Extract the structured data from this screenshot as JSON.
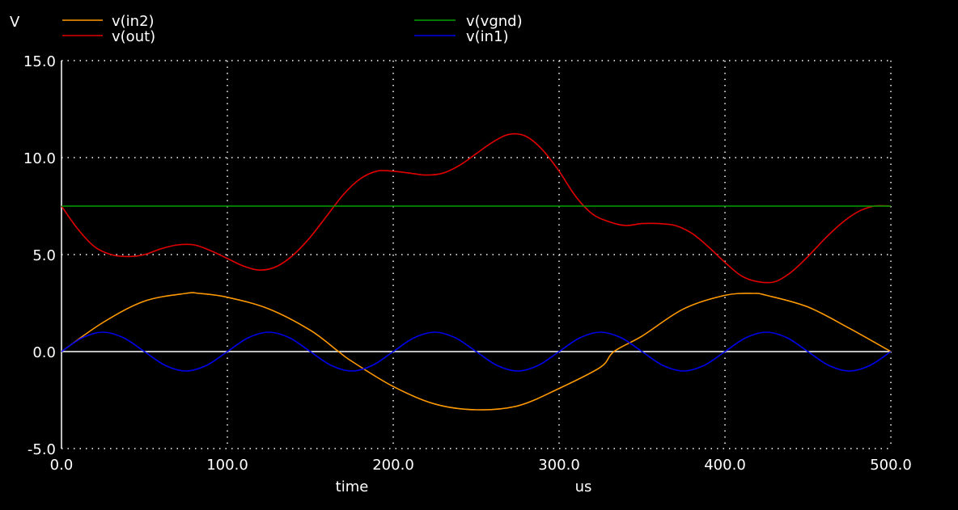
{
  "chart_data": {
    "type": "line",
    "title": "",
    "ylabel": "V",
    "xlabel": "time",
    "xunit": "us",
    "xlim": [
      0,
      500
    ],
    "ylim": [
      -5,
      15
    ],
    "xticks": [
      0,
      100,
      200,
      300,
      400,
      500
    ],
    "xtick_labels": [
      "0.0",
      "100.0",
      "200.0",
      "300.0",
      "400.0",
      "500.0"
    ],
    "yticks": [
      15,
      10,
      5,
      0,
      -5
    ],
    "ytick_labels": [
      "15.0",
      "10.0",
      "5.0",
      "0.0",
      "-5.0"
    ],
    "grid": true,
    "legend_position": "top",
    "series": [
      {
        "name": "v(in2)",
        "color": "#ff9900",
        "x": [
          0,
          25,
          50,
          75,
          83,
          100,
          125,
          150,
          167,
          175,
          200,
          225,
          250,
          275,
          300,
          325,
          333,
          350,
          375,
          400,
          417,
          425,
          450,
          475,
          500
        ],
        "y": [
          0,
          1.5,
          2.6,
          3.0,
          3.0,
          2.8,
          2.2,
          1.1,
          0,
          -0.5,
          -1.8,
          -2.7,
          -3.0,
          -2.8,
          -1.9,
          -0.8,
          0,
          0.8,
          2.2,
          2.9,
          3.0,
          2.9,
          2.3,
          1.2,
          0
        ]
      },
      {
        "name": "v(out)",
        "color": "#e00000",
        "x": [
          0,
          10,
          20,
          30,
          40,
          50,
          60,
          70,
          80,
          90,
          100,
          110,
          120,
          130,
          140,
          150,
          160,
          170,
          180,
          190,
          200,
          210,
          220,
          230,
          240,
          250,
          260,
          270,
          280,
          290,
          300,
          310,
          320,
          330,
          340,
          350,
          360,
          370,
          380,
          390,
          400,
          410,
          420,
          430,
          440,
          450,
          460,
          470,
          480,
          490,
          500
        ],
        "y": [
          7.5,
          6.3,
          5.4,
          5.0,
          4.9,
          5.0,
          5.3,
          5.5,
          5.5,
          5.2,
          4.8,
          4.4,
          4.2,
          4.4,
          5.0,
          5.9,
          7.0,
          8.1,
          8.9,
          9.3,
          9.3,
          9.2,
          9.1,
          9.2,
          9.6,
          10.2,
          10.8,
          11.2,
          11.1,
          10.4,
          9.3,
          8.0,
          7.1,
          6.7,
          6.5,
          6.6,
          6.6,
          6.5,
          6.1,
          5.4,
          4.6,
          3.9,
          3.6,
          3.6,
          4.1,
          4.9,
          5.8,
          6.6,
          7.2,
          7.5,
          7.5
        ]
      },
      {
        "name": "v(vgnd)",
        "color": "#00a000",
        "x": [
          0,
          500
        ],
        "y": [
          7.5,
          7.5
        ]
      },
      {
        "name": "v(in1)",
        "color": "#0000e8",
        "x": [
          0,
          12.5,
          25,
          37.5,
          50,
          62.5,
          75,
          87.5,
          100,
          112.5,
          125,
          137.5,
          150,
          162.5,
          175,
          187.5,
          200,
          212.5,
          225,
          237.5,
          250,
          262.5,
          275,
          287.5,
          300,
          312.5,
          325,
          337.5,
          350,
          362.5,
          375,
          387.5,
          400,
          412.5,
          425,
          437.5,
          450,
          462.5,
          475,
          487.5,
          500
        ],
        "y": [
          0,
          0.71,
          1,
          0.71,
          0,
          -0.71,
          -1,
          -0.71,
          0,
          0.71,
          1,
          0.71,
          0,
          -0.71,
          -1,
          -0.71,
          0,
          0.71,
          1,
          0.71,
          0,
          -0.71,
          -1,
          -0.71,
          0,
          0.71,
          1,
          0.71,
          0,
          -0.71,
          -1,
          -0.71,
          0,
          0.71,
          1,
          0.71,
          0,
          -0.71,
          -1,
          -0.71,
          0
        ]
      }
    ]
  }
}
